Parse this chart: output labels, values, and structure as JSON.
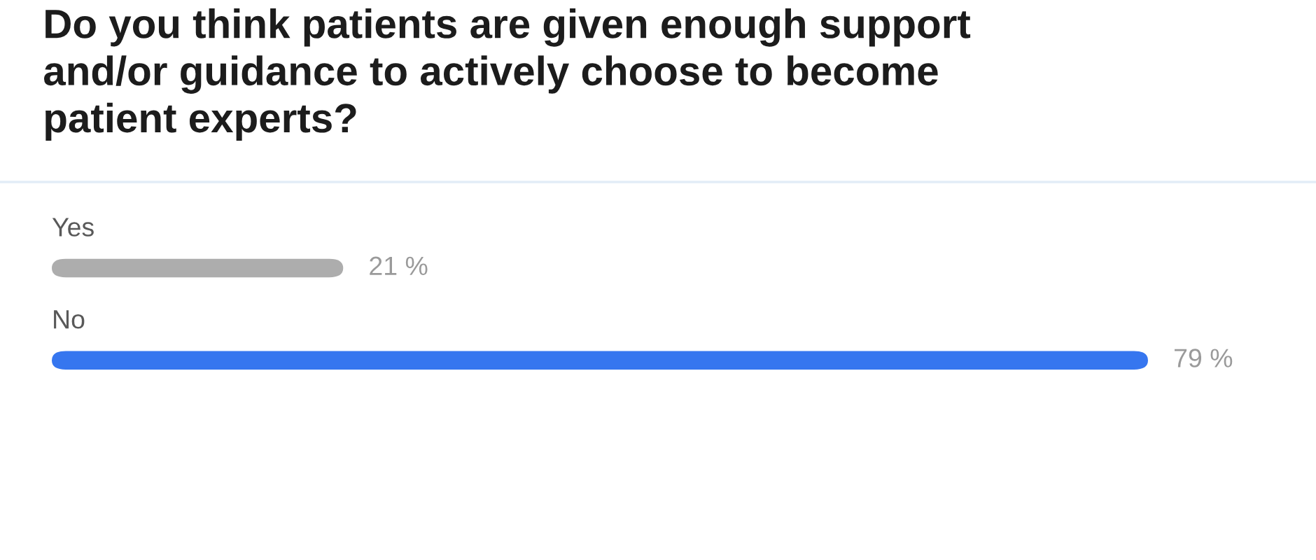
{
  "chart_data": {
    "type": "bar",
    "orientation": "horizontal",
    "title": "Do you think patients are given enough support and/or guidance to actively choose to become patient experts?",
    "categories": [
      "Yes",
      "No"
    ],
    "values": [
      21,
      79
    ],
    "colors": [
      "#adadad",
      "#3676ef"
    ],
    "value_labels": [
      "21 %",
      "79 %"
    ]
  }
}
